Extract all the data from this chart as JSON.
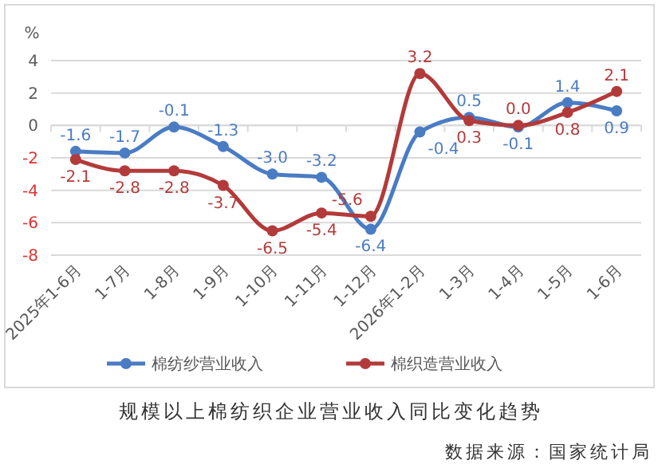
{
  "chart_data": {
    "type": "line",
    "title": "规模以上棉纺织企业营业收入同比变化趋势",
    "ylabel": "%",
    "annotations": [
      "数据来源：国家统计局"
    ],
    "categories": [
      "2025年1-6月",
      "1-7月",
      "1-8月",
      "1-9月",
      "1-10月",
      "1-11月",
      "1-12月",
      "2026年1-2月",
      "1-3月",
      "1-4月",
      "1-5月",
      "1-6月"
    ],
    "series": [
      {
        "name": "棉纺纱营业收入",
        "color": "#4a7cc4",
        "values": [
          -1.6,
          -1.7,
          -0.1,
          -1.3,
          -3.0,
          -3.2,
          -6.4,
          -0.4,
          0.5,
          -0.1,
          1.4,
          0.9
        ],
        "value_labels": [
          "-1.6",
          "-1.7",
          "-0.1",
          "-1.3",
          "-3.0",
          "-3.2",
          "-6.4",
          "-0.4",
          "0.5",
          "-0.1",
          "1.4",
          "0.9"
        ]
      },
      {
        "name": "棉织造营业收入",
        "color": "#b33a3a",
        "values": [
          -2.1,
          -2.8,
          -2.8,
          -3.7,
          -6.5,
          -5.4,
          -5.6,
          3.2,
          0.3,
          0.0,
          0.8,
          2.1
        ],
        "value_labels": [
          "-2.1",
          "-2.8",
          "-2.8",
          "-3.7",
          "-6.5",
          "-5.4",
          "-5.6",
          "3.2",
          "0.3",
          "0.0",
          "0.8",
          "2.1"
        ]
      }
    ],
    "ylim": [
      -8,
      4
    ],
    "yticks": [
      -8,
      -6,
      -4,
      -2,
      0,
      2,
      4
    ],
    "grid": "y",
    "legend": "bottom",
    "marker": "circle",
    "line_style": "solid"
  }
}
